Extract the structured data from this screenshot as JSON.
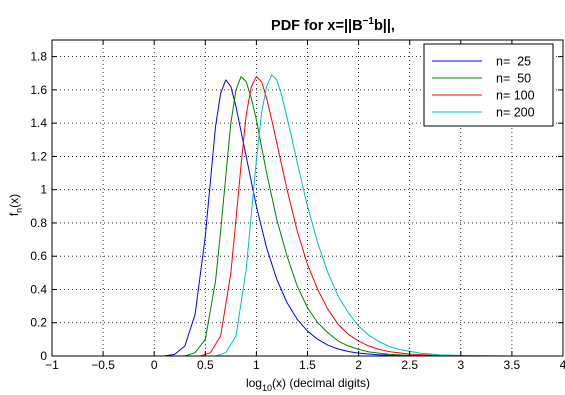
{
  "chart_data": {
    "type": "line",
    "title": {
      "prefix": "PDF for x=||B",
      "sup": "−1",
      "suffix": "b||,"
    },
    "xlabel": {
      "prefix": "log",
      "sub": "10",
      "suffix": "(x) (decimal digits)"
    },
    "ylabel": {
      "prefix": "f",
      "sub": "n",
      "suffix": "(x)"
    },
    "xlim": [
      -1,
      4
    ],
    "ylim": [
      0,
      1.9
    ],
    "xticks": [
      -1,
      -0.5,
      0,
      0.5,
      1,
      1.5,
      2,
      2.5,
      3,
      3.5,
      4
    ],
    "xtick_labels": [
      "−1",
      "−0.5",
      "0",
      "0.5",
      "1",
      "1.5",
      "2",
      "2.5",
      "3",
      "3.5",
      "4"
    ],
    "yticks": [
      0,
      0.2,
      0.4,
      0.6,
      0.8,
      1,
      1.2,
      1.4,
      1.6,
      1.8
    ],
    "ytick_labels": [
      "0",
      "0.2",
      "0.4",
      "0.6",
      "0.8",
      "1",
      "1.2",
      "1.4",
      "1.6",
      "1.8"
    ],
    "grid": true,
    "legend_position": "top-right",
    "series": [
      {
        "name": "n=  25",
        "color": "#0000ff",
        "x": [
          -1,
          0.1,
          0.2,
          0.3,
          0.4,
          0.5,
          0.55,
          0.6,
          0.65,
          0.7,
          0.75,
          0.8,
          0.9,
          1.0,
          1.1,
          1.2,
          1.3,
          1.4,
          1.5,
          1.6,
          1.7,
          1.8,
          1.9,
          2.0,
          2.2,
          2.4,
          2.7,
          3.0,
          4.0
        ],
        "y": [
          0,
          0,
          0.01,
          0.06,
          0.25,
          0.72,
          1.05,
          1.38,
          1.58,
          1.66,
          1.62,
          1.5,
          1.2,
          0.9,
          0.65,
          0.46,
          0.32,
          0.22,
          0.15,
          0.1,
          0.065,
          0.042,
          0.027,
          0.017,
          0.007,
          0.003,
          0.001,
          0,
          0
        ]
      },
      {
        "name": "n=  50",
        "color": "#008000",
        "x": [
          -1,
          0.3,
          0.4,
          0.5,
          0.6,
          0.65,
          0.7,
          0.75,
          0.8,
          0.85,
          0.9,
          0.95,
          1.0,
          1.1,
          1.2,
          1.3,
          1.4,
          1.5,
          1.6,
          1.7,
          1.8,
          1.9,
          2.0,
          2.1,
          2.3,
          2.5,
          2.8,
          3.2,
          4.0
        ],
        "y": [
          0,
          0,
          0.02,
          0.1,
          0.45,
          0.75,
          1.08,
          1.4,
          1.6,
          1.68,
          1.65,
          1.55,
          1.42,
          1.1,
          0.82,
          0.6,
          0.42,
          0.29,
          0.2,
          0.14,
          0.09,
          0.06,
          0.04,
          0.025,
          0.01,
          0.004,
          0.001,
          0,
          0
        ]
      },
      {
        "name": "n= 100",
        "color": "#ff0000",
        "x": [
          -1,
          0.45,
          0.55,
          0.65,
          0.75,
          0.8,
          0.85,
          0.9,
          0.95,
          1.0,
          1.05,
          1.1,
          1.15,
          1.2,
          1.3,
          1.4,
          1.5,
          1.6,
          1.7,
          1.8,
          1.9,
          2.0,
          2.1,
          2.2,
          2.3,
          2.5,
          2.7,
          3.0,
          3.4,
          4.0
        ],
        "y": [
          0,
          0,
          0.02,
          0.12,
          0.5,
          0.82,
          1.15,
          1.45,
          1.62,
          1.68,
          1.65,
          1.55,
          1.42,
          1.28,
          1.0,
          0.75,
          0.55,
          0.4,
          0.28,
          0.19,
          0.13,
          0.09,
          0.06,
          0.04,
          0.026,
          0.011,
          0.005,
          0.001,
          0,
          0
        ]
      },
      {
        "name": "n= 200",
        "color": "#00bfbf",
        "x": [
          -1,
          0.6,
          0.7,
          0.8,
          0.9,
          0.95,
          1.0,
          1.05,
          1.1,
          1.15,
          1.2,
          1.25,
          1.3,
          1.35,
          1.4,
          1.5,
          1.6,
          1.7,
          1.8,
          1.9,
          2.0,
          2.1,
          2.2,
          2.3,
          2.4,
          2.6,
          2.8,
          3.1,
          3.5,
          4.0
        ],
        "y": [
          0,
          0,
          0.02,
          0.12,
          0.52,
          0.85,
          1.18,
          1.46,
          1.62,
          1.69,
          1.66,
          1.56,
          1.43,
          1.3,
          1.16,
          0.9,
          0.68,
          0.5,
          0.36,
          0.26,
          0.18,
          0.125,
          0.086,
          0.058,
          0.039,
          0.017,
          0.007,
          0.002,
          0,
          0
        ]
      }
    ]
  }
}
